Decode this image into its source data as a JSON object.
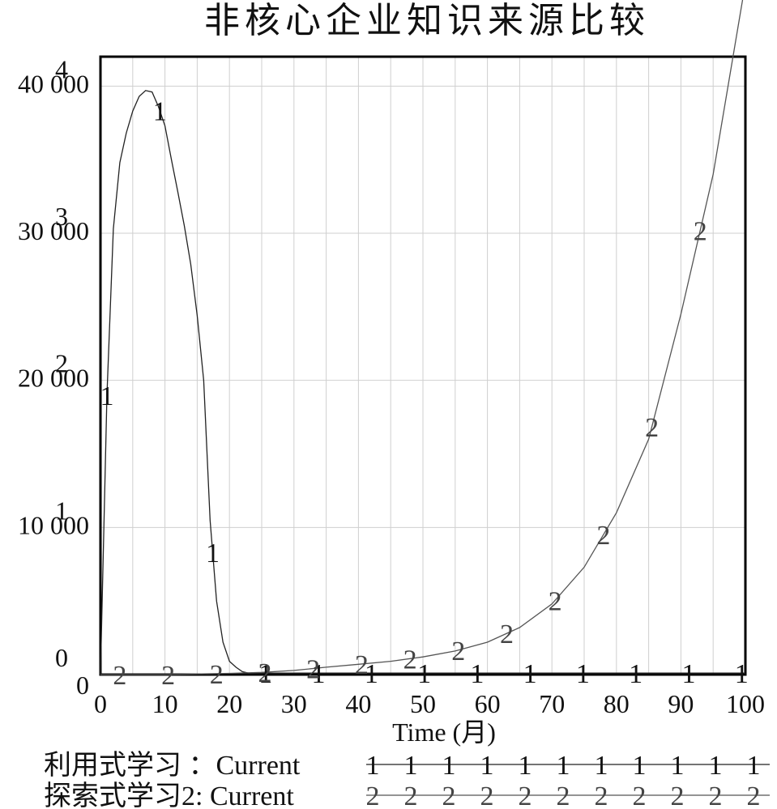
{
  "chart_data": {
    "type": "line",
    "title": "非核心企业知识来源比较",
    "xlabel": "Time (月)",
    "xlim": [
      0,
      100
    ],
    "x_ticks": [
      "0",
      "10",
      "20",
      "30",
      "40",
      "50",
      "60",
      "70",
      "80",
      "90",
      "100"
    ],
    "y_axes": [
      {
        "axis": "1",
        "ticks": [
          "0",
          "1",
          "2",
          "3",
          "4"
        ]
      },
      {
        "axis": "2",
        "ticks": [
          "0",
          "10 000",
          "20 000",
          "30 000",
          "40 000"
        ]
      }
    ],
    "grid": true,
    "legend_placement": "bottom",
    "series": [
      {
        "name": "利用式学习 : Current",
        "marker": "1",
        "legend_label": "利用式学习 ：Current",
        "x": [
          0,
          1,
          2,
          3,
          4,
          5,
          6,
          7,
          8,
          9,
          10,
          11,
          12,
          13,
          14,
          15,
          16,
          17,
          18,
          19,
          20,
          21,
          22,
          23,
          24,
          25,
          30,
          35,
          40,
          45,
          50,
          55,
          60,
          65,
          70,
          75,
          80,
          85,
          90,
          95,
          100
        ],
        "y": [
          0,
          1.9,
          3.03,
          3.48,
          3.68,
          3.83,
          3.93,
          3.97,
          3.96,
          3.86,
          3.73,
          3.5,
          3.28,
          3.05,
          2.79,
          2.44,
          2.0,
          1.05,
          0.5,
          0.22,
          0.09,
          0.05,
          0.02,
          0.01,
          0.01,
          0.01,
          0.01,
          0.01,
          0.01,
          0.01,
          0.01,
          0.01,
          0.01,
          0.01,
          0.01,
          0.01,
          0.01,
          0.01,
          0.01,
          0.01,
          0.01
        ]
      },
      {
        "name": "探索式学习2: Current",
        "marker": "2",
        "legend_label": "探索式学习2: Current",
        "x": [
          0,
          10,
          20,
          25,
          30,
          35,
          40,
          45,
          50,
          55,
          60,
          65,
          70,
          75,
          80,
          85,
          90,
          95,
          100
        ],
        "y": [
          0,
          0,
          80,
          150,
          280,
          500,
          700,
          900,
          1200,
          1600,
          2200,
          3200,
          4800,
          7300,
          11000,
          16000,
          24500,
          34000,
          47000
        ]
      }
    ]
  }
}
